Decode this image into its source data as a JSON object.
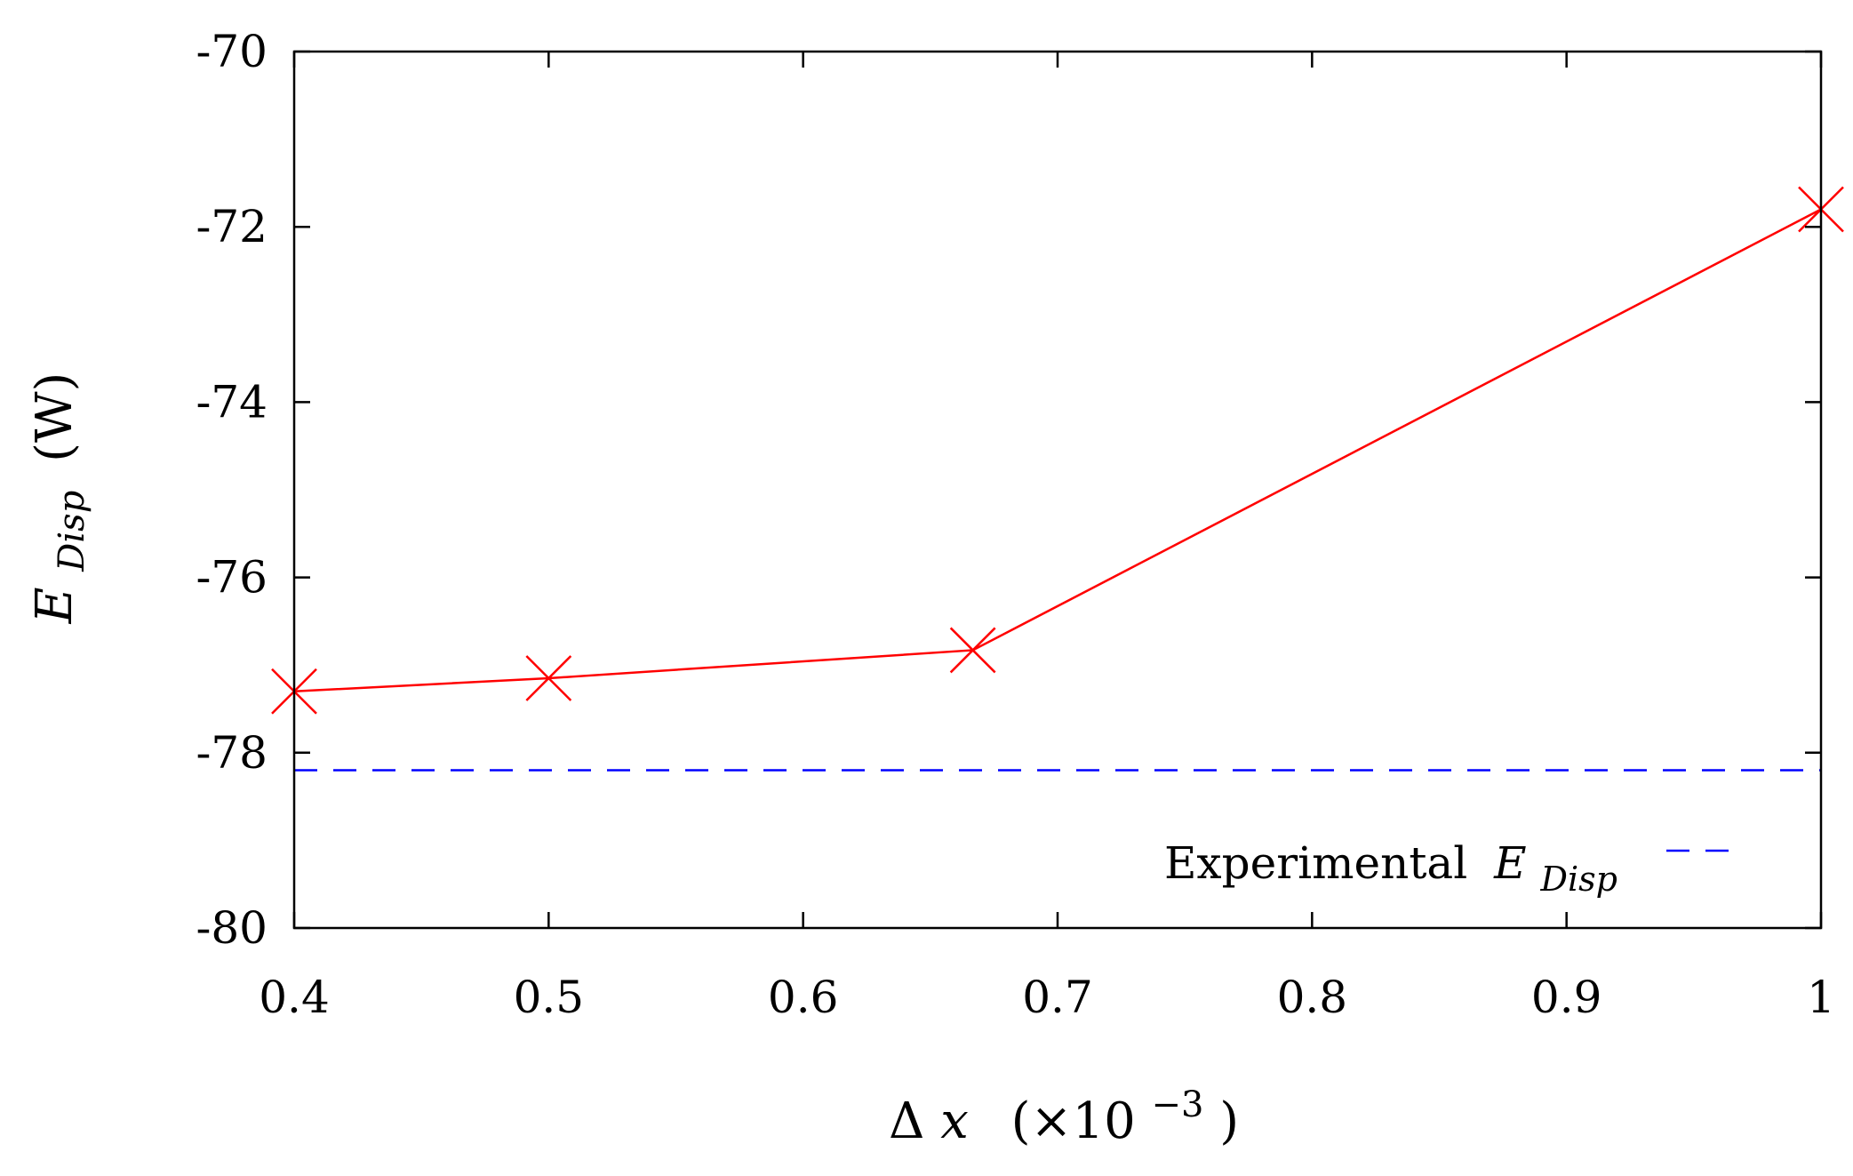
{
  "chart_data": {
    "type": "line",
    "title": "",
    "xlabel": {
      "symbol": "Δ",
      "variable": "x",
      "factor": "(×10",
      "exponent": "−3",
      "close": ")"
    },
    "ylabel": {
      "symbol": "E",
      "subscript": "Disp",
      "unit": "(W)"
    },
    "xlim": [
      0.4,
      1.0
    ],
    "ylim": [
      -80,
      -70
    ],
    "x_ticks": [
      0.4,
      0.5,
      0.6,
      0.7,
      0.8,
      0.9,
      1.0
    ],
    "x_tick_labels": [
      "0.4",
      "0.5",
      "0.6",
      "0.7",
      "0.8",
      "0.9",
      "1"
    ],
    "y_ticks": [
      -70,
      -72,
      -74,
      -76,
      -78,
      -80
    ],
    "y_tick_labels": [
      "-70",
      "-72",
      "-74",
      "-76",
      "-78",
      "-80"
    ],
    "grid": false,
    "legend_position": "bottom-right",
    "series": [
      {
        "color": "#ff0000",
        "style": "solid",
        "marker": "x",
        "x": [
          0.4,
          0.5,
          0.6667,
          1.0
        ],
        "y": [
          -77.3,
          -77.15,
          -76.83,
          -71.8
        ]
      },
      {
        "name_text": "Experimental",
        "name_symbol": "E",
        "name_subscript": "Disp",
        "color": "#0000ff",
        "style": "dashed",
        "marker": "none",
        "constant_y": -78.2
      }
    ]
  }
}
